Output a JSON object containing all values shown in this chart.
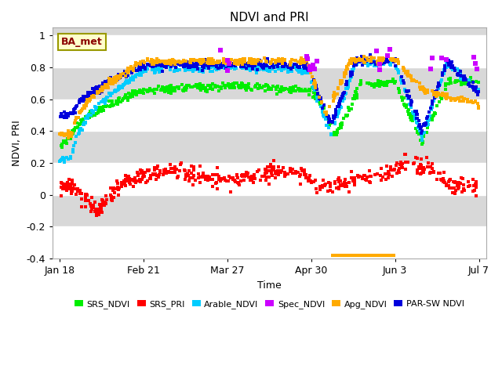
{
  "title": "NDVI and PRI",
  "xlabel": "Time",
  "ylabel": "NDVI, PRI",
  "ylim": [
    -0.4,
    1.05
  ],
  "yticks": [
    -0.4,
    -0.2,
    0.0,
    0.2,
    0.4,
    0.6,
    0.8,
    1.0
  ],
  "xtick_labels": [
    "Jan 18",
    "Feb 21",
    "Mar 27",
    "Apr 30",
    "Jun 3",
    "Jul 7"
  ],
  "xtick_days": [
    0,
    34,
    68,
    102,
    136,
    170
  ],
  "plot_bg_color": "#d8d8d8",
  "white_bands": [
    [
      -0.4,
      -0.2
    ],
    [
      0.0,
      0.2
    ],
    [
      0.4,
      0.6
    ],
    [
      0.8,
      1.0
    ]
  ],
  "colors": {
    "srs_ndvi": "#00ee00",
    "srs_pri": "#ff0000",
    "arable_ndvi": "#00ccff",
    "spec_ndvi": "#cc00ff",
    "apg_ndvi": "#ffaa00",
    "par_ndvi": "#0000dd"
  },
  "legend_labels": [
    "SRS_NDVI",
    "SRS_PRI",
    "Arable_NDVI",
    "Spec_NDVI",
    "Apg_NDVI",
    "PAR-SW NDVI"
  ],
  "annotation": "BA_met",
  "orange_line_x": [
    110,
    136
  ],
  "orange_line_y": [
    -0.38,
    -0.38
  ]
}
